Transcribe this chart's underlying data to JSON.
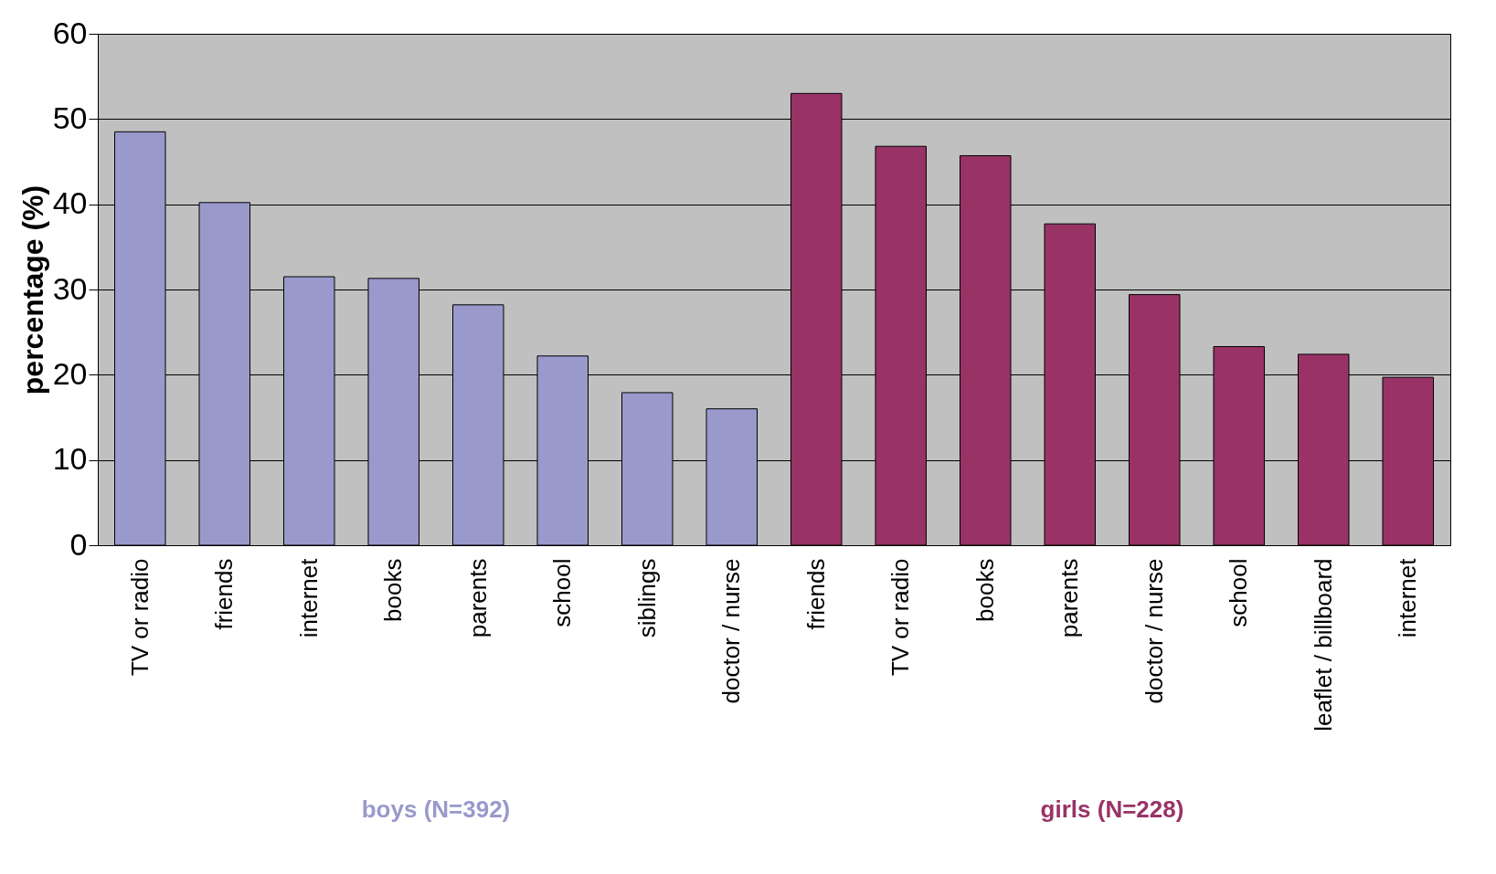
{
  "chart_data": {
    "type": "bar",
    "ylabel": "percentage (%)",
    "categories": [
      "TV or radio",
      "friends",
      "internet",
      "books",
      "parents",
      "school",
      "siblings",
      "doctor / nurse",
      "friends",
      "TV or radio",
      "books",
      "parents",
      "doctor / nurse",
      "school",
      "leaflet / billboard",
      "internet"
    ],
    "series": [
      {
        "name": "boys (N=392)",
        "color": "#9999cc",
        "values": [
          48.5,
          40.2,
          31.5,
          31.3,
          28.2,
          22.2,
          17.9,
          16.0,
          null,
          null,
          null,
          null,
          null,
          null,
          null,
          null
        ]
      },
      {
        "name": "girls (N=228)",
        "color": "#993366",
        "values": [
          null,
          null,
          null,
          null,
          null,
          null,
          null,
          null,
          53.0,
          46.8,
          45.7,
          37.7,
          29.4,
          23.3,
          22.4,
          19.7
        ]
      }
    ],
    "ylim": [
      0,
      60
    ],
    "yticks": [
      0,
      10,
      20,
      30,
      40,
      50,
      60
    ],
    "grid": "y"
  }
}
